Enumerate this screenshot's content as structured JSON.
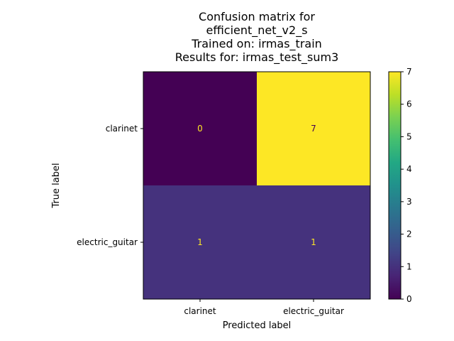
{
  "chart_data": {
    "type": "heatmap",
    "title_lines": [
      "Confusion matrix for",
      "efficient_net_v2_s",
      "Trained on: irmas_train",
      "Results for: irmas_test_sum3"
    ],
    "xlabel": "Predicted label",
    "ylabel": "True label",
    "x_categories": [
      "clarinet",
      "electric_guitar"
    ],
    "y_categories": [
      "clarinet",
      "electric_guitar"
    ],
    "matrix": [
      [
        0,
        7
      ],
      [
        1,
        1
      ]
    ],
    "colormap": "viridis",
    "colorbar": {
      "min": 0,
      "max": 7,
      "ticks": [
        "0",
        "1",
        "2",
        "3",
        "4",
        "5",
        "6",
        "7"
      ]
    },
    "cell_text_colors": {
      "on_dark": "#fde725",
      "on_light": "#440154"
    }
  }
}
